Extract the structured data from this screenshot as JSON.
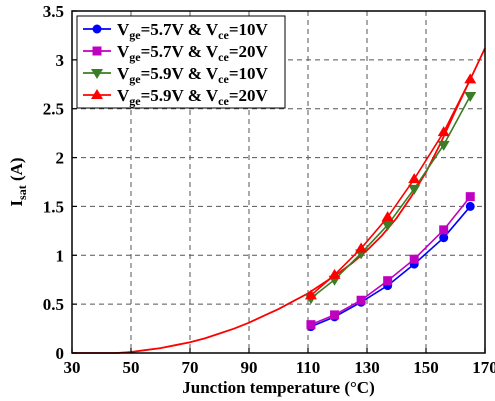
{
  "chart_data": {
    "type": "line",
    "xlabel": "Junction temperature (°C)",
    "ylabel": "I_sat (A)",
    "xlim": [
      30,
      170
    ],
    "ylim": [
      0,
      3.5
    ],
    "x_ticks": [
      "30",
      "50",
      "70",
      "90",
      "110",
      "130",
      "150",
      "170"
    ],
    "y_ticks": [
      "0",
      "0.5",
      "1",
      "1.5",
      "2",
      "2.5",
      "3",
      "3.5"
    ],
    "grid": true,
    "legend_position": "top-left",
    "series": [
      {
        "name": "V_ge=5.7V & V_ce=10V",
        "legend": {
          "p1": "V",
          "s1": "ge",
          "p2": "=5.7V & V",
          "s2": "ce",
          "p3": "=10V"
        },
        "color": "#0000ff",
        "marker": "circle",
        "x": [
          111,
          119,
          128,
          137,
          146,
          156,
          165
        ],
        "y": [
          0.27,
          0.37,
          0.52,
          0.69,
          0.91,
          1.18,
          1.5
        ]
      },
      {
        "name": "V_ge=5.7V & V_ce=20V",
        "legend": {
          "p1": "V",
          "s1": "ge",
          "p2": "=5.7V & V",
          "s2": "ce",
          "p3": "=20V"
        },
        "color": "#c000c0",
        "marker": "square",
        "x": [
          111,
          119,
          128,
          137,
          146,
          156,
          165
        ],
        "y": [
          0.29,
          0.39,
          0.54,
          0.74,
          0.96,
          1.26,
          1.6
        ]
      },
      {
        "name": "V_ge=5.9V & V_ce=10V",
        "legend": {
          "p1": "V",
          "s1": "ge",
          "p2": "=5.9V & V",
          "s2": "ce",
          "p3": "=10V"
        },
        "color": "#3a7d24",
        "marker": "triangle-down",
        "x": [
          111,
          119,
          128,
          137,
          146,
          156,
          165
        ],
        "y": [
          0.56,
          0.75,
          1.02,
          1.31,
          1.68,
          2.13,
          2.63
        ]
      },
      {
        "name": "V_ge=5.9V & V_ce=20V",
        "legend": {
          "p1": "V",
          "s1": "ge",
          "p2": "=5.9V & V",
          "s2": "ce",
          "p3": "=20V"
        },
        "color": "#ff0000",
        "marker": "triangle-up",
        "x": [
          111,
          119,
          128,
          137,
          146,
          156,
          165
        ],
        "y": [
          0.59,
          0.8,
          1.07,
          1.39,
          1.78,
          2.26,
          2.8
        ]
      }
    ],
    "fit_curve": {
      "color": "#ff0000",
      "x": [
        30,
        35,
        40,
        45,
        50,
        55,
        60,
        65,
        70,
        75,
        80,
        85,
        90,
        95,
        100,
        105,
        110,
        115,
        120,
        125,
        130,
        135,
        140,
        145,
        150,
        155,
        160,
        165,
        170
      ],
      "y": [
        0.0,
        0.0,
        0.0,
        0.0,
        0.01,
        0.03,
        0.05,
        0.08,
        0.11,
        0.15,
        0.2,
        0.25,
        0.31,
        0.38,
        0.45,
        0.53,
        0.61,
        0.71,
        0.81,
        0.92,
        1.05,
        1.2,
        1.38,
        1.6,
        1.85,
        2.15,
        2.48,
        2.8,
        3.12
      ]
    }
  }
}
